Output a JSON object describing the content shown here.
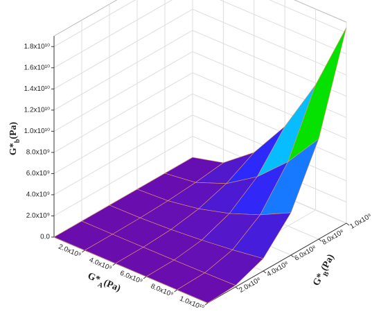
{
  "chart_data": {
    "type": "surface3d",
    "xlabel": {
      "main": "G*",
      "sub": "A",
      "unit": "(Pa)"
    },
    "ylabel": {
      "main": "G*",
      "sub": "B",
      "unit": "(Pa)"
    },
    "zlabel": {
      "main": "G*",
      "sub": "b",
      "unit": "(Pa)"
    },
    "x": [
      0,
      2000000000.0,
      4000000000.0,
      6000000000.0,
      8000000000.0,
      10000000000.0
    ],
    "y": [
      0,
      200000000.0,
      400000000.0,
      600000000.0,
      800000000.0,
      1000000000.0
    ],
    "z": [
      [
        0,
        0,
        0,
        0,
        0,
        0
      ],
      [
        0,
        6000000.0,
        47000000.0,
        160000000.0,
        380000000.0,
        740000000.0
      ],
      [
        0,
        24000000.0,
        190000000.0,
        640000000.0,
        1520000000.0,
        2960000000.0
      ],
      [
        0,
        53000000.0,
        430000000.0,
        1440000000.0,
        3410000000.0,
        6660000000.0
      ],
      [
        0,
        95000000.0,
        760000000.0,
        2560000000.0,
        6060000000.0,
        11840000000.0
      ],
      [
        0,
        148000000.0,
        1180000000.0,
        4000000000.0,
        9470000000.0,
        18500000000.0
      ]
    ],
    "xlim": [
      0,
      10000000000.0
    ],
    "ylim": [
      0,
      1000000000.0
    ],
    "zlim": [
      0,
      19000000000.0
    ],
    "xticks": [
      {
        "value": 2000000000.0,
        "label": "2.0x10⁹"
      },
      {
        "value": 4000000000.0,
        "label": "4.0x10⁹"
      },
      {
        "value": 6000000000.0,
        "label": "6.0x10⁹"
      },
      {
        "value": 8000000000.0,
        "label": "8.0x10⁹"
      },
      {
        "value": 10000000000.0,
        "label": "1.0x10¹⁰"
      }
    ],
    "yticks": [
      {
        "value": 200000000.0,
        "label": "2.0x10⁸"
      },
      {
        "value": 400000000.0,
        "label": "4.0x10⁸"
      },
      {
        "value": 600000000.0,
        "label": "6.0x10⁸"
      },
      {
        "value": 800000000.0,
        "label": "8.0x10⁸"
      },
      {
        "value": 1000000000.0,
        "label": "1.0x10⁹"
      }
    ],
    "zticks": [
      {
        "value": 0,
        "label": "0.0"
      },
      {
        "value": 2000000000.0,
        "label": "2.0x10⁹"
      },
      {
        "value": 4000000000.0,
        "label": "4.0x10⁹"
      },
      {
        "value": 6000000000.0,
        "label": "6.0x10⁹"
      },
      {
        "value": 8000000000.0,
        "label": "8.0x10⁹"
      },
      {
        "value": 10000000000.0,
        "label": "1.0x10¹⁰"
      },
      {
        "value": 12000000000.0,
        "label": "1.2x10¹⁰"
      },
      {
        "value": 14000000000.0,
        "label": "1.4x10¹⁰"
      },
      {
        "value": 16000000000.0,
        "label": "1.6x10¹⁰"
      },
      {
        "value": 18000000000.0,
        "label": "1.8x10¹⁰"
      }
    ],
    "colormap": [
      "#6a0dad",
      "#2a2aff",
      "#00d8ff",
      "#00e000",
      "#ffff00",
      "#ff0000"
    ],
    "mesh_color": "#e89a6a",
    "grid": true
  }
}
